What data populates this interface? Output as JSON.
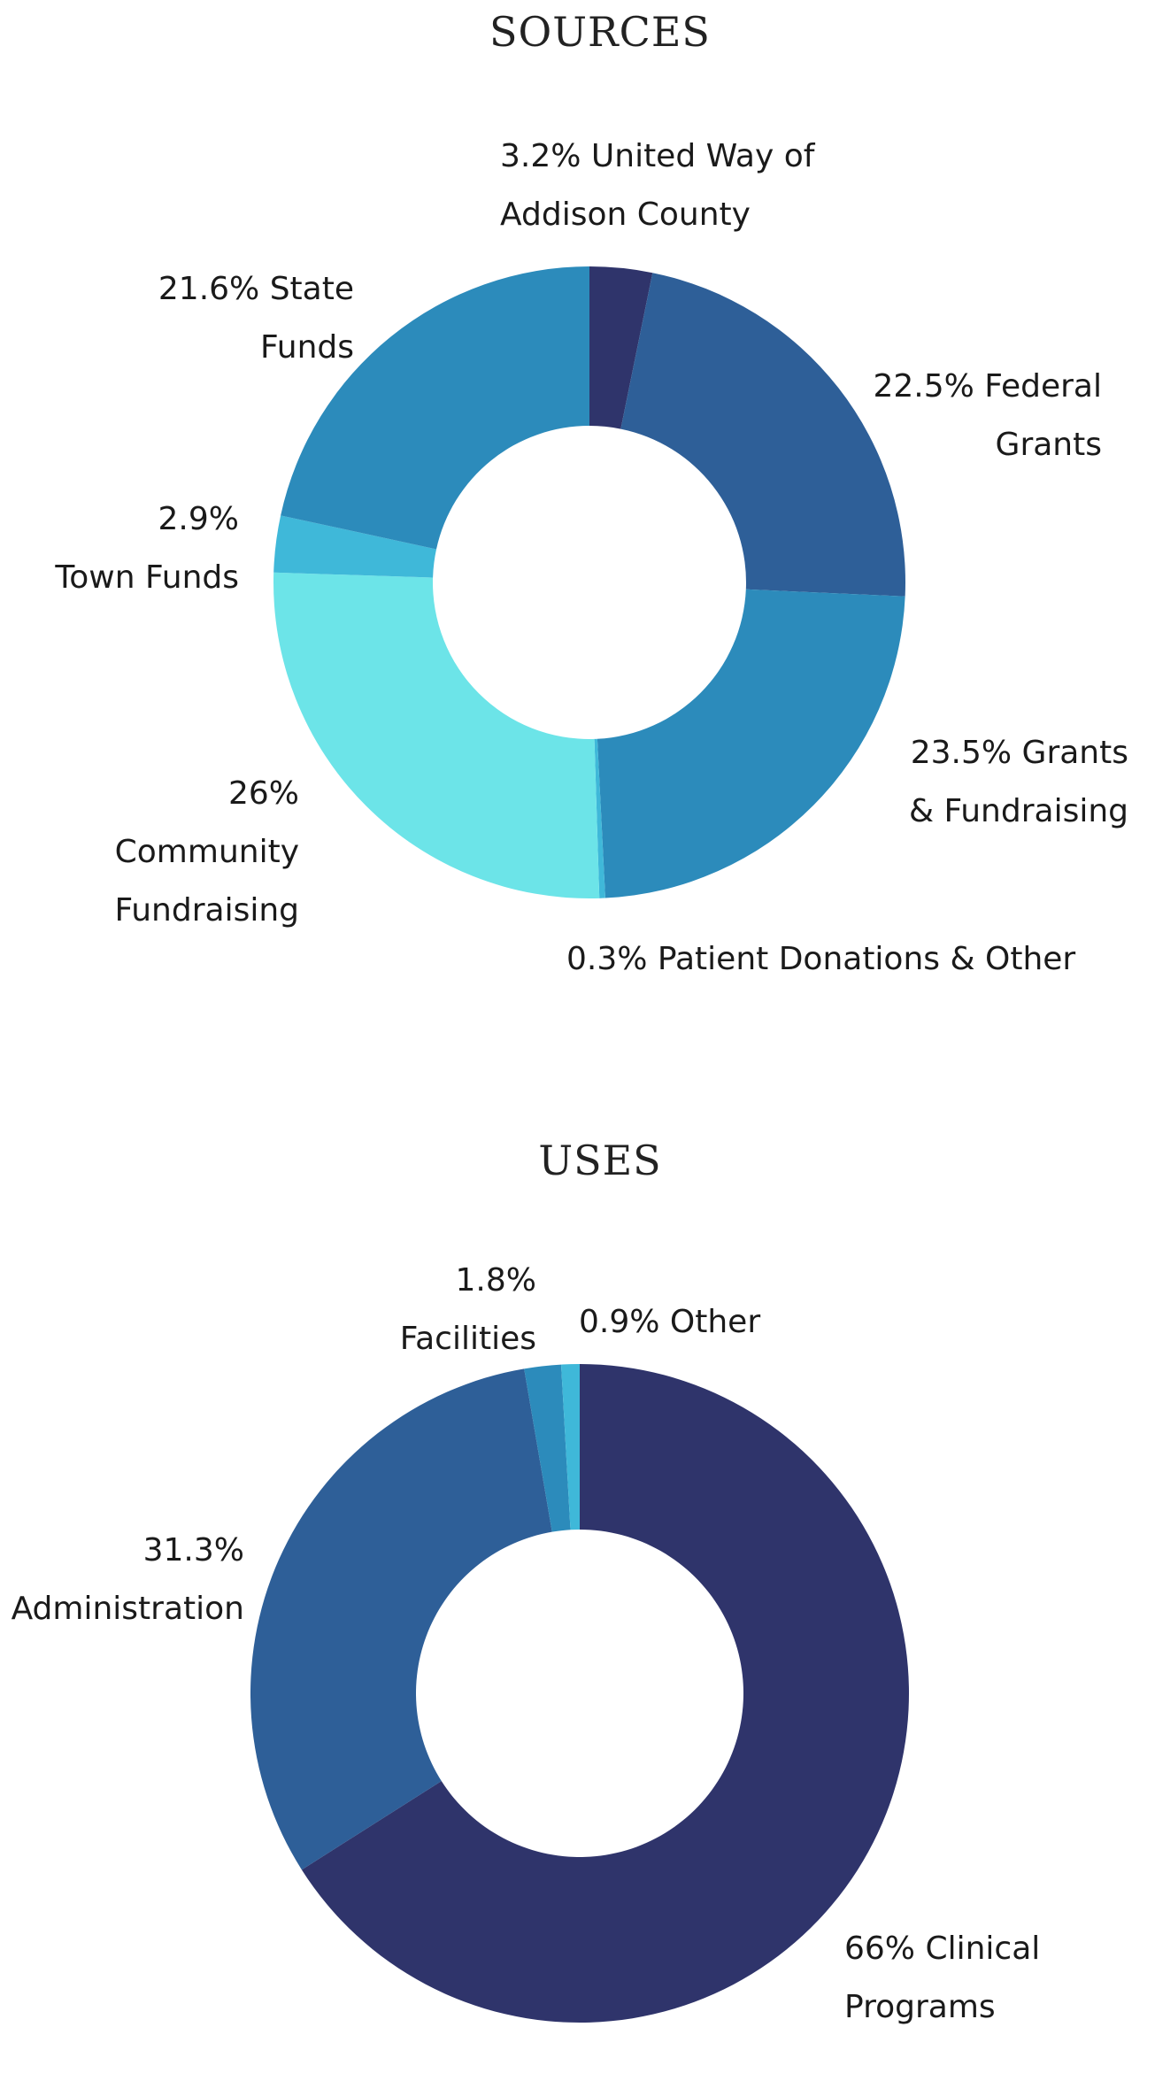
{
  "chart_data": [
    {
      "type": "pie",
      "title": "SOURCES",
      "series": [
        {
          "values": [
            3.2,
            22.5,
            23.5,
            0.3,
            26,
            2.9,
            21.6
          ],
          "labels": [
            [
              "3.2% United Way of",
              "Addison County"
            ],
            [
              "22.5% Federal",
              "Grants"
            ],
            [
              "23.5% Grants",
              "& Fundraising"
            ],
            [
              "0.3% Patient Donations & Other"
            ],
            [
              "26%",
              "Community",
              "Fundraising"
            ],
            [
              "2.9%",
              "Town Funds"
            ],
            [
              "21.6% State",
              "Funds"
            ]
          ],
          "colors": [
            "#2f346b",
            "#2e5f98",
            "#2c8bbb",
            "#3fb8d9",
            "#6ce4e8",
            "#3fb8d9",
            "#2c8bbb"
          ]
        }
      ],
      "legend": "labels next to slices",
      "start": "top, clockwise",
      "style": "donut"
    },
    {
      "type": "pie",
      "title": "USES",
      "series": [
        {
          "values": [
            66,
            31.3,
            1.8,
            0.9
          ],
          "labels": [
            [
              "66% Clinical",
              "Programs"
            ],
            [
              "31.3%",
              "Administration"
            ],
            [
              "1.8%",
              "Facilities"
            ],
            [
              "0.9% Other"
            ]
          ],
          "colors": [
            "#2f346b",
            "#2e5f98",
            "#2c8bbb",
            "#3fb8d9"
          ]
        }
      ],
      "legend": "labels next to slices",
      "start": "top, clockwise",
      "style": "donut"
    }
  ]
}
